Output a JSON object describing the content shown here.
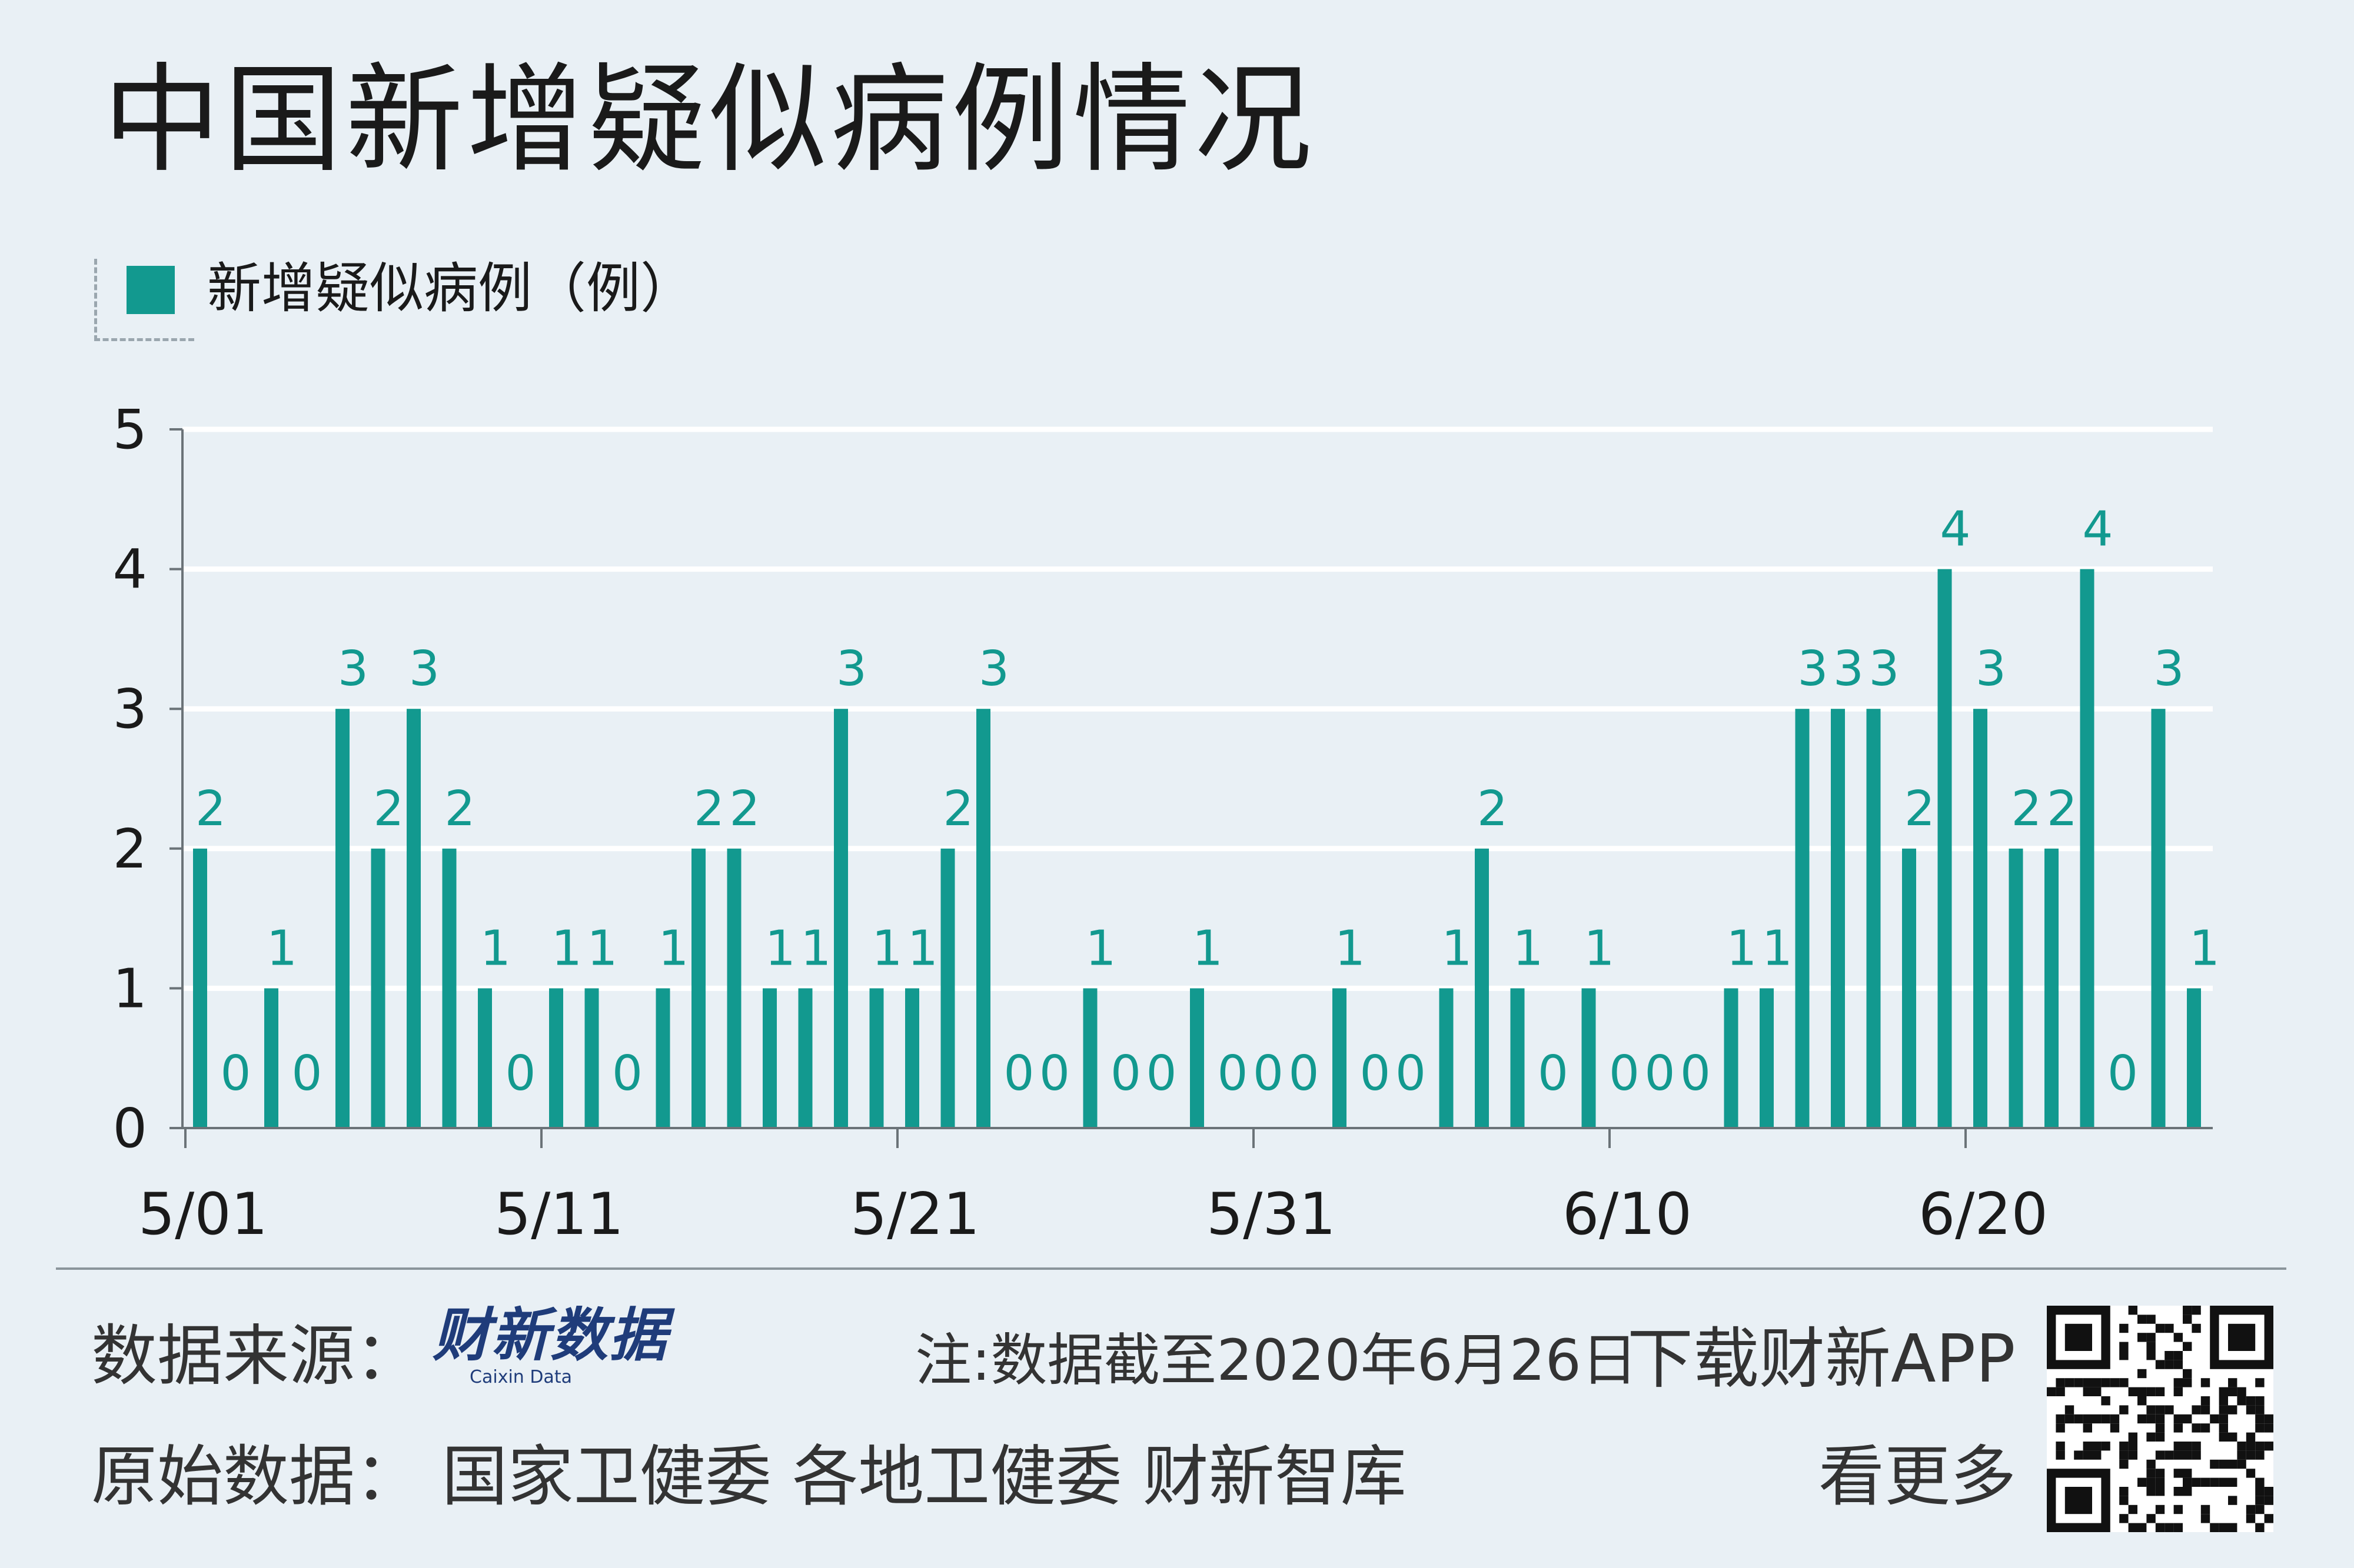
{
  "title": "中国新增疑似病例情况",
  "legend": {
    "label": "新增疑似病例（例）",
    "color": "#12998f"
  },
  "chart_data": {
    "type": "bar",
    "series": [
      {
        "name": "新增疑似病例（例）",
        "values": [
          2,
          0,
          1,
          0,
          3,
          2,
          3,
          2,
          1,
          0,
          1,
          1,
          0,
          1,
          2,
          2,
          1,
          1,
          3,
          1,
          1,
          2,
          3,
          0,
          0,
          1,
          0,
          0,
          1,
          0,
          0,
          0,
          1,
          0,
          0,
          1,
          2,
          1,
          0,
          1,
          0,
          0,
          0,
          1,
          1,
          3,
          3,
          3,
          2,
          4,
          3,
          2,
          2,
          4,
          0,
          3,
          1
        ]
      }
    ],
    "categories": [
      "5/01",
      "5/02",
      "5/03",
      "5/04",
      "5/05",
      "5/06",
      "5/07",
      "5/08",
      "5/09",
      "5/10",
      "5/11",
      "5/12",
      "5/13",
      "5/14",
      "5/15",
      "5/16",
      "5/17",
      "5/18",
      "5/19",
      "5/20",
      "5/21",
      "5/22",
      "5/23",
      "5/24",
      "5/25",
      "5/26",
      "5/27",
      "5/28",
      "5/29",
      "5/30",
      "5/31",
      "6/01",
      "6/02",
      "6/03",
      "6/04",
      "6/05",
      "6/06",
      "6/07",
      "6/08",
      "6/09",
      "6/10",
      "6/11",
      "6/12",
      "6/13",
      "6/14",
      "6/15",
      "6/16",
      "6/17",
      "6/18",
      "6/19",
      "6/20",
      "6/21",
      "6/22",
      "6/23",
      "6/24",
      "6/25",
      "6/26"
    ],
    "x_tick_labels": [
      "5/01",
      "5/11",
      "5/21",
      "5/31",
      "6/10",
      "6/20"
    ],
    "y_ticks": [
      0,
      1,
      2,
      3,
      4,
      5
    ],
    "ylim": [
      0,
      5
    ],
    "grid": true,
    "data_labels": true,
    "bar_color": "#12998f",
    "label_color": "#12998f"
  },
  "footer": {
    "source_label": "数据来源：",
    "logo_text": "财新数据",
    "logo_sub": "Caixin Data",
    "note": "注:数据截至2020年6月26日",
    "download": "下载财新APP",
    "original_data": "原始数据：  国家卫健委  各地卫健委  财新智库",
    "more": "看更多"
  }
}
